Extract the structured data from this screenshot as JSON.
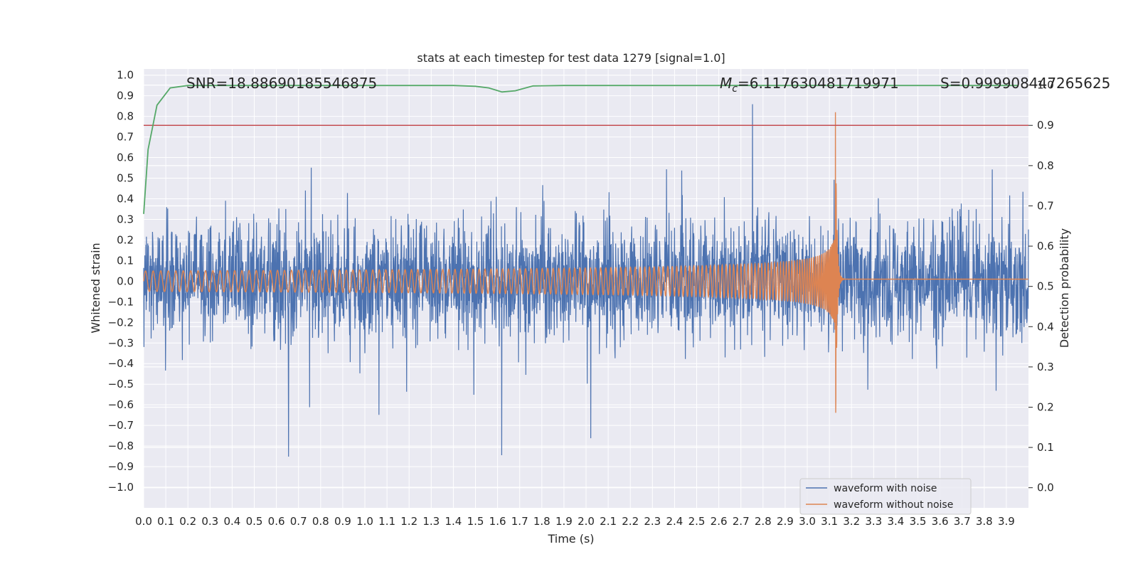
{
  "chart_data": {
    "type": "line",
    "title": "stats at each timestep for test data 1279 [signal=1.0]",
    "xlabel": "Time (s)",
    "ylabel": "Whitened strain",
    "y2label": "Detection probability",
    "xlim": [
      0.0,
      4.0
    ],
    "ylim": [
      -1.1,
      1.03
    ],
    "y2lim": [
      -0.05,
      1.04
    ],
    "x_ticks": [
      "0.0",
      "0.1",
      "0.2",
      "0.3",
      "0.4",
      "0.5",
      "0.6",
      "0.7",
      "0.8",
      "0.9",
      "1.0",
      "1.1",
      "1.2",
      "1.3",
      "1.4",
      "1.5",
      "1.6",
      "1.7",
      "1.8",
      "1.9",
      "2.0",
      "2.1",
      "2.2",
      "2.3",
      "2.4",
      "2.5",
      "2.6",
      "2.7",
      "2.8",
      "2.9",
      "3.0",
      "3.1",
      "3.2",
      "3.3",
      "3.4",
      "3.5",
      "3.6",
      "3.7",
      "3.8",
      "3.9"
    ],
    "y_ticks": [
      "1.0",
      "0.9",
      "0.8",
      "0.7",
      "0.6",
      "0.5",
      "0.4",
      "0.3",
      "0.2",
      "0.1",
      "0.0",
      "−0.1",
      "−0.2",
      "−0.3",
      "−0.4",
      "−0.5",
      "−0.6",
      "−0.7",
      "−0.8",
      "−0.9",
      "−1.0"
    ],
    "y2_ticks": [
      "1.0",
      "0.9",
      "0.8",
      "0.7",
      "0.6",
      "0.5",
      "0.4",
      "0.3",
      "0.2",
      "0.1",
      "0.0"
    ],
    "threshold": 0.9,
    "annotations": {
      "snr": "SNR=18.88690185546875",
      "mc_symbol": "M",
      "mc_sub": "c",
      "mc_value": "=6.117630481719971",
      "s": "S=0.999908447265625"
    },
    "series": [
      {
        "name": "waveform with noise",
        "color": "#4c72b0",
        "description": "whitened strain noise, amplitude about 0.25 RMS with peaks near ±0.95"
      },
      {
        "name": "waveform without noise",
        "color": "#dd8452",
        "merger_time": 3.13,
        "initial_amplitude": 0.05,
        "peak_amplitude": 0.6
      },
      {
        "name": "detection probability",
        "color": "#55a868",
        "axis": "right",
        "x": [
          0.0,
          0.02,
          0.06,
          0.12,
          0.2,
          0.4,
          0.8,
          1.2,
          1.4,
          1.5,
          1.56,
          1.62,
          1.68,
          1.76,
          1.9,
          2.5,
          3.0,
          3.5,
          3.95
        ],
        "values": [
          0.68,
          0.84,
          0.95,
          0.993,
          0.999,
          0.999,
          0.999,
          0.999,
          0.999,
          0.997,
          0.993,
          0.983,
          0.986,
          0.998,
          0.999,
          0.999,
          0.999,
          0.999,
          0.999
        ]
      },
      {
        "name": "threshold",
        "color": "#c44e52",
        "axis": "right",
        "value": 0.9
      }
    ],
    "legend": [
      "waveform with noise",
      "waveform without noise"
    ],
    "legend_position": "lower-right",
    "background": "#eaeaf2",
    "grid": true
  }
}
